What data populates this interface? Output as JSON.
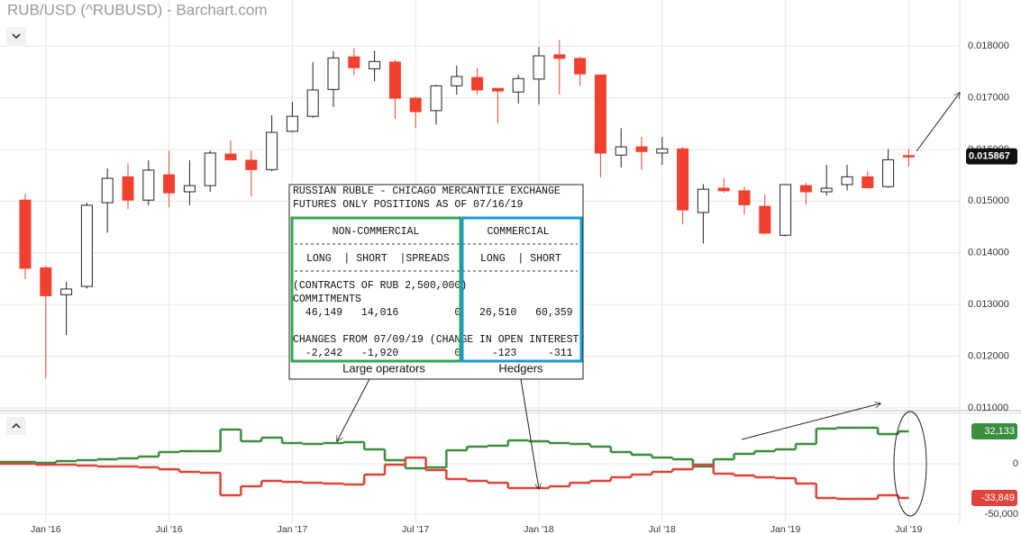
{
  "chart_data": [
    {
      "type": "candlestick",
      "title": "RUB/USD (^RUBUSD) - Barchart.com",
      "open": [
        0.01502,
        0.01371,
        0.01319,
        0.01335,
        0.01497,
        0.01547,
        0.01502,
        0.01551,
        0.01518,
        0.0153,
        0.01591,
        0.01579,
        0.01561,
        0.01635,
        0.01664,
        0.01716,
        0.01779,
        0.01756,
        0.01769,
        0.01699,
        0.01675,
        0.01723,
        0.01739,
        0.01718,
        0.01711,
        0.01736,
        0.01783,
        0.01776,
        0.01744,
        0.01589,
        0.01605,
        0.01593,
        0.01601,
        0.01478,
        0.01525,
        0.0152,
        0.0149,
        0.01434,
        0.0153,
        0.01518,
        0.01532,
        0.01547,
        0.01528,
        0.01588
      ],
      "high": [
        0.01514,
        0.01375,
        0.01344,
        0.01497,
        0.01563,
        0.01573,
        0.01579,
        0.01598,
        0.01579,
        0.01598,
        0.01617,
        0.01598,
        0.01666,
        0.01692,
        0.01769,
        0.0179,
        0.01795,
        0.01791,
        0.01774,
        0.01702,
        0.01725,
        0.01762,
        0.01758,
        0.01718,
        0.01744,
        0.01798,
        0.01812,
        0.01779,
        0.01744,
        0.01641,
        0.01624,
        0.01624,
        0.01605,
        0.01533,
        0.01544,
        0.01528,
        0.01513,
        0.01533,
        0.01535,
        0.0157,
        0.0157,
        0.01558,
        0.01601,
        0.01601
      ],
      "low": [
        0.01349,
        0.01157,
        0.01241,
        0.01331,
        0.01439,
        0.01485,
        0.01492,
        0.01488,
        0.01492,
        0.01518,
        0.01579,
        0.01509,
        0.01558,
        0.01633,
        0.01661,
        0.01682,
        0.01744,
        0.01732,
        0.01659,
        0.01641,
        0.01648,
        0.01706,
        0.01706,
        0.01651,
        0.01689,
        0.01687,
        0.01706,
        0.01723,
        0.01546,
        0.01565,
        0.01561,
        0.0157,
        0.01455,
        0.01418,
        0.01516,
        0.01474,
        0.01436,
        0.01432,
        0.01493,
        0.01511,
        0.01521,
        0.01525,
        0.01526,
        0.01567
      ],
      "close": [
        0.0137,
        0.01317,
        0.0133,
        0.01492,
        0.01544,
        0.01502,
        0.0156,
        0.01516,
        0.0153,
        0.01593,
        0.0158,
        0.01561,
        0.01633,
        0.01664,
        0.01715,
        0.01777,
        0.01758,
        0.0177,
        0.01699,
        0.01673,
        0.01723,
        0.01741,
        0.01715,
        0.01713,
        0.01737,
        0.01781,
        0.01776,
        0.01746,
        0.01593,
        0.01605,
        0.01596,
        0.01601,
        0.01483,
        0.01523,
        0.0152,
        0.01493,
        0.01438,
        0.01532,
        0.01518,
        0.01525,
        0.01547,
        0.01526,
        0.0158,
        0.015867
      ],
      "up_color": "#ffffff",
      "down_color": "#f0402f",
      "ylim": [
        0.011,
        0.01889
      ],
      "yticks": [
        {
          "value": 0.011,
          "label": "0.011000"
        },
        {
          "value": 0.012,
          "label": "0.012000"
        },
        {
          "value": 0.013,
          "label": "0.013000"
        },
        {
          "value": 0.014,
          "label": "0.014000"
        },
        {
          "value": 0.015,
          "label": "0.015000"
        },
        {
          "value": 0.016,
          "label": "0.016000"
        },
        {
          "value": 0.017,
          "label": "0.017000"
        },
        {
          "value": 0.018,
          "label": "0.018000"
        }
      ],
      "grid": true,
      "report": {
        "title_lines": [
          "RUSSIAN RUBLE - CHICAGO MERCANTILE EXCHANGE",
          "FUTURES ONLY POSITIONS AS OF 07/16/19"
        ],
        "column_groups": [
          "NON-COMMERCIAL",
          "COMMERCIAL"
        ],
        "column_rows": [
          "LONG  | SHORT  |SPREADS",
          "LONG  | SHORT"
        ],
        "lines": [
          "(CONTRACTS OF RUB 2,500,000)",
          "COMMITMENTS",
          "  46,149   14,016         0   26,510   60,359",
          "",
          "CHANGES FROM 07/09/19 (CHANGE IN OPEN INTEREST",
          "  -2,242   -1,920         0     -123     -311"
        ],
        "group_labels": [
          "Large operators",
          "Hedgers"
        ]
      }
    },
    {
      "type": "line",
      "categories": [
        null,
        "Jan '16",
        null,
        null,
        null,
        null,
        null,
        "Jul '16",
        null,
        null,
        null,
        null,
        null,
        "Jan '17",
        null,
        null,
        null,
        null,
        null,
        "Jul '17",
        null,
        null,
        null,
        null,
        null,
        "Jan '18",
        null,
        null,
        null,
        null,
        null,
        "Jul '18",
        null,
        null,
        null,
        null,
        null,
        "Jan '19",
        null,
        null,
        null,
        null,
        null,
        "Jul '19"
      ],
      "series": [
        {
          "color": "#3a8f3e",
          "last_label": "32,133",
          "values": [
            1800,
            900,
            2700,
            3600,
            4500,
            5400,
            7100,
            11600,
            12500,
            12500,
            33900,
            22300,
            25900,
            20500,
            19600,
            20500,
            21400,
            14300,
            3600,
            -4500,
            -3600,
            13400,
            17000,
            17900,
            23200,
            22300,
            20500,
            19600,
            17000,
            11600,
            8900,
            6200,
            4500,
            -2700,
            4500,
            9800,
            12500,
            14300,
            19600,
            34800,
            35700,
            35700,
            29500,
            32133
          ]
        },
        {
          "color": "#e0433a",
          "last_label": "-33,849",
          "values": [
            0,
            -900,
            -900,
            -1800,
            -2700,
            -2700,
            -3600,
            -5400,
            -8000,
            -8900,
            -31200,
            -22300,
            -17000,
            -17900,
            -18800,
            -19600,
            -20500,
            -10700,
            -900,
            6200,
            -6200,
            -15200,
            -17000,
            -18800,
            -24100,
            -24100,
            -22300,
            -18800,
            -17000,
            -13400,
            -10700,
            -8000,
            -5400,
            -900,
            -9800,
            -11600,
            -13400,
            -14300,
            -19600,
            -33900,
            -34800,
            -34800,
            -31200,
            -33849
          ]
        }
      ],
      "ylim": [
        -58000,
        49100
      ],
      "yticks": [
        {
          "value": -50000,
          "label": "-50,000"
        },
        0
      ],
      "grid": true
    }
  ]
}
